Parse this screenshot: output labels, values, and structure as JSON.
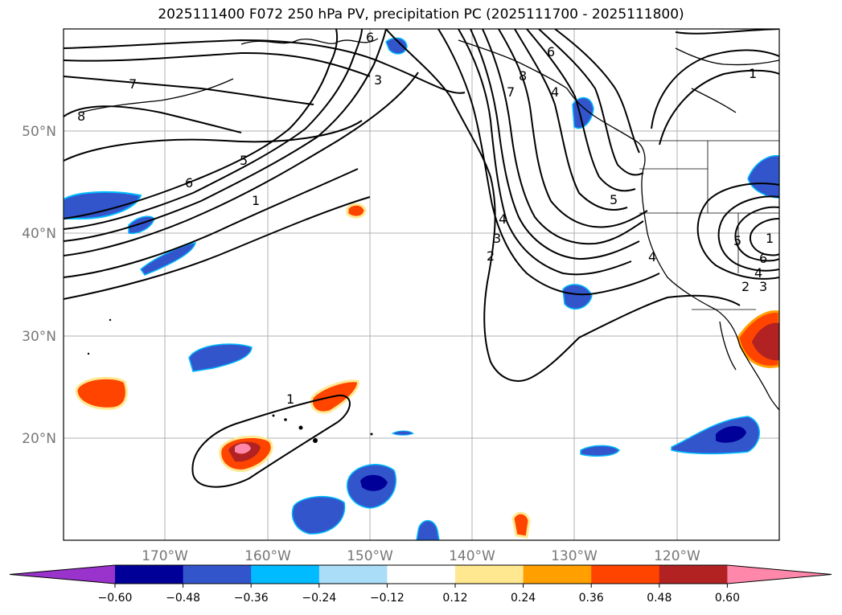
{
  "title": "2025111400 F072 250 hPa PV, precipitation PC (2025111700 - 2025111800)",
  "lat_labels": [
    "50°N",
    "40°N",
    "30°N",
    "20°N"
  ],
  "lon_labels": [
    "170°W",
    "160°W",
    "150°W",
    "140°W",
    "130°W",
    "120°W"
  ],
  "contour_labels": [
    "7",
    "8",
    "3",
    "1",
    "6",
    "6",
    "5",
    "1",
    "4",
    "3",
    "2",
    "7",
    "8",
    "6",
    "5",
    "4",
    "4",
    "5",
    "6",
    "4",
    "3",
    "2",
    "1",
    "1"
  ],
  "colorbar": {
    "ticks": [
      "−0.60",
      "−0.48",
      "−0.36",
      "−0.24",
      "−0.12",
      "0.12",
      "0.24",
      "0.36",
      "0.48",
      "0.60"
    ],
    "colors": [
      "#9933cc",
      "#000099",
      "#3355cc",
      "#00bbff",
      "#aaddf7",
      "#ffffff",
      "#ffe890",
      "#ffa000",
      "#ff4400",
      "#b22222",
      "#ff88aa"
    ]
  }
}
